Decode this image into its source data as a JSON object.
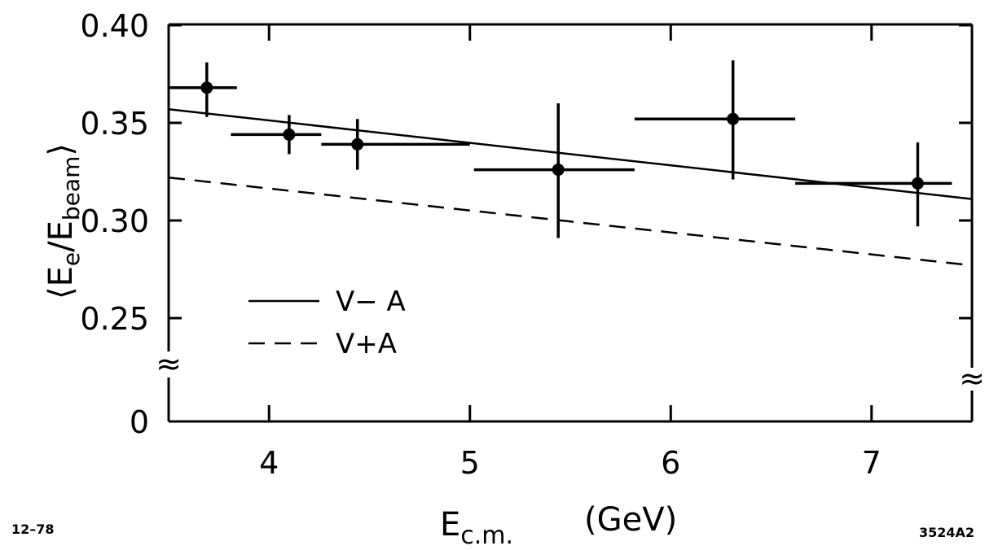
{
  "chart_data": {
    "type": "scatter",
    "xlabel": {
      "main": "E",
      "sub": "c.m.",
      "unit": "(GeV)"
    },
    "ylabel": {
      "open": "⟨",
      "main": "E",
      "sub_e": "e",
      "slash": "/E",
      "sub_beam": "beam",
      "close": "⟩"
    },
    "xlim": [
      3.5,
      7.5
    ],
    "ylim": [
      0.2,
      0.4
    ],
    "y_axis_break": true,
    "x_ticks": [
      {
        "value": 4,
        "label": "4"
      },
      {
        "value": 5,
        "label": "5"
      },
      {
        "value": 6,
        "label": "6"
      },
      {
        "value": 7,
        "label": "7"
      }
    ],
    "y_ticks": [
      {
        "value": 0.4,
        "label": "0.40"
      },
      {
        "value": 0.35,
        "label": "0.35"
      },
      {
        "value": 0.3,
        "label": "0.30"
      },
      {
        "value": 0.25,
        "label": "0.25"
      }
    ],
    "y_zero_label": "0",
    "break_symbol": "≈",
    "points": [
      {
        "x": 3.69,
        "y": 0.368,
        "xlo": 3.5,
        "xhi": 3.84,
        "ylo": 0.353,
        "yhi": 0.381
      },
      {
        "x": 4.1,
        "y": 0.344,
        "xlo": 3.81,
        "xhi": 4.26,
        "ylo": 0.334,
        "yhi": 0.354
      },
      {
        "x": 4.44,
        "y": 0.339,
        "xlo": 4.26,
        "xhi": 5.0,
        "ylo": 0.326,
        "yhi": 0.352
      },
      {
        "x": 5.44,
        "y": 0.326,
        "xlo": 5.02,
        "xhi": 5.82,
        "ylo": 0.291,
        "yhi": 0.36
      },
      {
        "x": 6.31,
        "y": 0.352,
        "xlo": 5.82,
        "xhi": 6.62,
        "ylo": 0.321,
        "yhi": 0.382
      },
      {
        "x": 7.23,
        "y": 0.319,
        "xlo": 6.62,
        "xhi": 7.4,
        "ylo": 0.297,
        "yhi": 0.34
      }
    ],
    "lines": [
      {
        "name": "V− A",
        "style": "solid",
        "x": [
          3.5,
          7.5
        ],
        "y": [
          0.357,
          0.311
        ]
      },
      {
        "name": "V+A",
        "style": "dashed",
        "x": [
          3.5,
          7.5
        ],
        "y": [
          0.322,
          0.277
        ]
      }
    ],
    "legend_position": "bottom-left",
    "annotations": {
      "left_code": "12–78",
      "right_code": "3524A2"
    }
  }
}
